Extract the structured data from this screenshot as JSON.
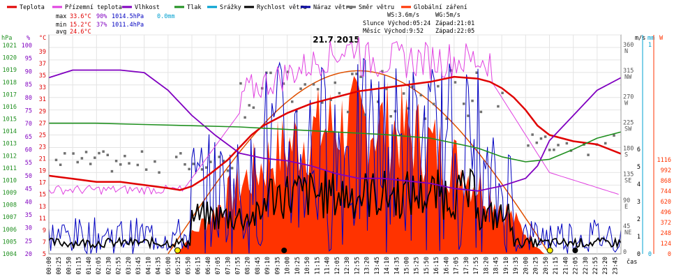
{
  "chart_data": {
    "type": "line",
    "title": "21.7.2015",
    "legend": [
      {
        "label": "Teplota",
        "color": "#e00000"
      },
      {
        "label": "Přízemní teplota",
        "color": "#e040e0"
      },
      {
        "label": "Vlhkost",
        "color": "#8000c0"
      },
      {
        "label": "Tlak",
        "color": "#209020"
      },
      {
        "label": "Srážky",
        "color": "#00a0d0"
      },
      {
        "label": "Rychlost větru",
        "color": "#000000"
      },
      {
        "label": "Náraz větru",
        "color": "#0000a0"
      },
      {
        "label": "Směr větru",
        "color": "#707070"
      },
      {
        "label": "Globální záření",
        "color": "#ff3300"
      }
    ],
    "stats": {
      "max_label": "max",
      "max_temp": "33.6°C",
      "max_hum": "90%",
      "max_press": "1014.5hPa",
      "rain": "0.0mm",
      "min_label": "min",
      "min_temp": "15.2°C",
      "min_hum": "37%",
      "min_press": "1011.4hPa",
      "avg_label": "avg",
      "avg_temp": "24.6°C",
      "ws": "WS:3.6m/s",
      "wg": "WG:5m/s",
      "sun": "Slunce Východ:05:24",
      "sun_set": "Západ:21:01",
      "moon": "Měsíc  Východ:9:52",
      "moon_set": "Západ:22:05"
    },
    "axes_left": {
      "hpa": {
        "unit": "hPa",
        "ticks": [
          "1021",
          "1020",
          "1019",
          "1018",
          "1017",
          "1016",
          "1015",
          "1014",
          "1013",
          "1012",
          "1011",
          "1010",
          "1009",
          "1008",
          "1007",
          "1006",
          "1005",
          "1004"
        ],
        "color": "#209020"
      },
      "pct": {
        "unit": "%",
        "ticks": [
          "100",
          "95",
          "90",
          "85",
          "80",
          "75",
          "70",
          "65",
          "60",
          "55",
          "50",
          "45",
          "40",
          "35",
          "30",
          "25",
          "20"
        ],
        "color": "#8000c0"
      },
      "temp": {
        "unit": "°C",
        "ticks": [
          "39",
          "37",
          "35",
          "33",
          "31",
          "29",
          "27",
          "25",
          "23",
          "21",
          "19",
          "17",
          "15",
          "13",
          "11",
          "9",
          "7",
          "5"
        ],
        "color": "#e00000"
      }
    },
    "axes_right": {
      "ms": {
        "unit": "m/s",
        "ticks": [
          "6",
          "5",
          "4",
          "3",
          "2",
          "1",
          "0"
        ],
        "color": "#000000"
      },
      "mm": {
        "unit": "mm",
        "ticks": [
          "1",
          "0"
        ],
        "color": "#00a0d0"
      },
      "w": {
        "unit": "W",
        "ticks": [
          "1116",
          "992",
          "868",
          "744",
          "620",
          "496",
          "372",
          "248",
          "124",
          "0"
        ],
        "color": "#ff3300"
      },
      "dir": {
        "ticks": [
          "360 N",
          "315 NW",
          "270 W",
          "225 SW",
          "180 S",
          "135 SE",
          "90 E",
          "45 NE",
          "0"
        ]
      }
    },
    "x_label": "čas",
    "x_ticks": [
      "00:00",
      "00:25",
      "00:50",
      "01:15",
      "01:40",
      "02:05",
      "02:30",
      "02:55",
      "03:20",
      "03:45",
      "04:10",
      "04:35",
      "05:00",
      "05:25",
      "05:50",
      "06:15",
      "06:40",
      "07:05",
      "07:30",
      "07:55",
      "08:20",
      "08:45",
      "09:10",
      "09:35",
      "10:00",
      "10:25",
      "10:50",
      "11:15",
      "11:40",
      "12:05",
      "12:30",
      "12:55",
      "13:20",
      "13:45",
      "14:10",
      "14:35",
      "15:00",
      "15:25",
      "15:50",
      "16:15",
      "16:40",
      "17:05",
      "17:30",
      "17:55",
      "18:20",
      "18:45",
      "19:10",
      "19:35",
      "20:00",
      "20:25",
      "20:50",
      "21:15",
      "21:40",
      "22:05",
      "22:30",
      "22:55",
      "23:20",
      "23:45"
    ],
    "series": [
      {
        "name": "Teplota",
        "x_hours": [
          0,
          1,
          2,
          3,
          4,
          5,
          5.5,
          6,
          6.5,
          7,
          7.5,
          8,
          8.5,
          9,
          9.5,
          10,
          11,
          12,
          13,
          14,
          15,
          16,
          17,
          18,
          18.5,
          19,
          19.5,
          20,
          20.5,
          21,
          22,
          23,
          24
        ],
        "values": [
          17.5,
          17,
          16.5,
          16.5,
          16,
          15.5,
          15.2,
          15.8,
          17,
          18.5,
          20,
          22,
          24,
          25.5,
          26.5,
          27.5,
          29,
          30,
          31,
          31.5,
          32,
          32.5,
          33.3,
          33,
          32.5,
          31.5,
          30,
          28,
          25.5,
          24,
          23,
          22.5,
          21
        ]
      },
      {
        "name": "Vlhkost",
        "x_hours": [
          0,
          1,
          2,
          3,
          4,
          5,
          6,
          7,
          8,
          9,
          10,
          11,
          12,
          13,
          14,
          15,
          16,
          17,
          18,
          19,
          20,
          20.5,
          21,
          22,
          23,
          24
        ],
        "values": [
          85,
          88,
          88,
          88,
          87,
          80,
          70,
          62,
          55,
          53,
          52,
          50,
          47,
          45,
          45,
          44,
          43,
          41,
          40,
          42,
          45,
          50,
          60,
          70,
          80,
          85
        ]
      },
      {
        "name": "Tlak",
        "x_hours": [
          0,
          2,
          4,
          6,
          8,
          10,
          12,
          14,
          16,
          18,
          19,
          20,
          21,
          22,
          23,
          24
        ],
        "values": [
          1014.5,
          1014.5,
          1014.4,
          1014.3,
          1014.2,
          1014.0,
          1013.8,
          1013.6,
          1013.3,
          1012.5,
          1011.8,
          1011.4,
          1011.6,
          1012.4,
          1013.3,
          1013.8
        ]
      }
    ]
  }
}
